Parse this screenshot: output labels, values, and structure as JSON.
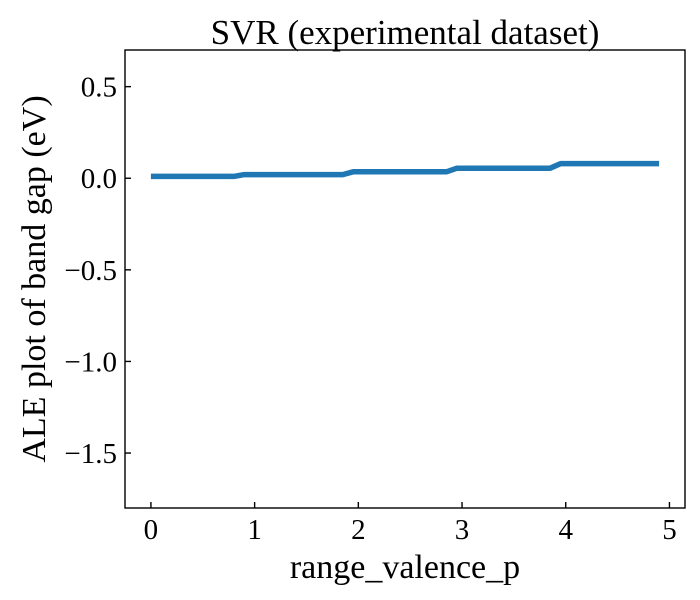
{
  "chart_data": {
    "type": "line",
    "title": "SVR (experimental dataset)",
    "xlabel": "range_valence_p",
    "ylabel": "ALE plot of band gap (eV)",
    "xlim": [
      -0.25,
      5.15
    ],
    "ylim": [
      -1.8,
      0.7
    ],
    "xticks": [
      0,
      1,
      2,
      3,
      4,
      5
    ],
    "xtick_labels": [
      "0",
      "1",
      "2",
      "3",
      "4",
      "5"
    ],
    "yticks": [
      0.5,
      0.0,
      -0.5,
      -1.0,
      -1.5
    ],
    "ytick_labels": [
      "0.5",
      "0.0",
      "−0.5",
      "−1.0",
      "−1.5"
    ],
    "grid": false,
    "legend": false,
    "series": [
      {
        "color": "#1f77b4",
        "x": [
          0,
          0.8,
          0.9,
          1.85,
          1.95,
          2.85,
          2.95,
          3.85,
          3.95,
          4.9
        ],
        "y": [
          0.01,
          0.01,
          0.02,
          0.02,
          0.035,
          0.035,
          0.055,
          0.055,
          0.08,
          0.08
        ]
      }
    ]
  }
}
